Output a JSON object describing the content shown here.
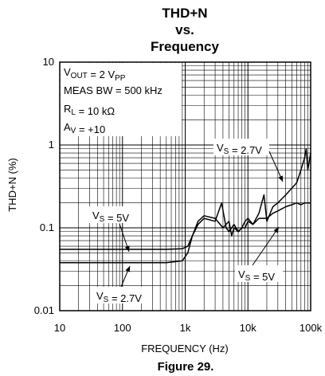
{
  "chart_data": {
    "type": "line",
    "title": [
      "THD+N",
      "vs.",
      "Frequency"
    ],
    "xlabel": "FREQUENCY (Hz)",
    "ylabel": "THD+N (%)",
    "x_scale": "log",
    "y_scale": "log",
    "xlim": [
      10,
      100000
    ],
    "ylim": [
      0.01,
      10
    ],
    "x_ticks": [
      {
        "value": 10,
        "label": "10"
      },
      {
        "value": 100,
        "label": "100"
      },
      {
        "value": 1000,
        "label": "1k"
      },
      {
        "value": 10000,
        "label": "10k"
      },
      {
        "value": 100000,
        "label": "100k"
      }
    ],
    "y_ticks": [
      {
        "value": 0.01,
        "label": "0.01"
      },
      {
        "value": 0.1,
        "label": "0.1"
      },
      {
        "value": 1,
        "label": "1"
      },
      {
        "value": 10,
        "label": "10"
      }
    ],
    "grid": true,
    "conditions": [
      {
        "main": "V",
        "sub": "OUT",
        "rest": " = 2 V",
        "sub2": "PP"
      },
      {
        "main": "MEAS BW = 500 kHz",
        "sub": "",
        "rest": "",
        "sub2": ""
      },
      {
        "main": "R",
        "sub": "L",
        "rest": " = 10 kΩ",
        "sub2": ""
      },
      {
        "main": "A",
        "sub": "V",
        "rest": " = +10",
        "sub2": ""
      }
    ],
    "series": [
      {
        "name_parts": {
          "main": "V",
          "sub": "S",
          "rest": " = 5V"
        },
        "x": [
          10,
          500,
          900,
          1100,
          1300,
          1600,
          2000,
          3000,
          4000,
          5000,
          5500,
          6000,
          7000,
          8000,
          9000,
          10000,
          12000,
          15000,
          20000,
          25000,
          30000,
          40000,
          50000,
          60000,
          70000,
          80000,
          90000,
          100000
        ],
        "y": [
          0.055,
          0.055,
          0.056,
          0.06,
          0.08,
          0.12,
          0.14,
          0.13,
          0.1,
          0.12,
          0.08,
          0.1,
          0.09,
          0.1,
          0.1,
          0.12,
          0.11,
          0.13,
          0.13,
          0.15,
          0.16,
          0.18,
          0.19,
          0.2,
          0.19,
          0.2,
          0.2,
          0.2
        ]
      },
      {
        "name_parts": {
          "main": "V",
          "sub": "S",
          "rest": " = 2.7V"
        },
        "x": [
          10,
          500,
          900,
          1100,
          1300,
          1600,
          2000,
          3000,
          3800,
          4500,
          5000,
          6000,
          7000,
          8000,
          9000,
          10000,
          12000,
          15000,
          18000,
          20000,
          25000,
          30000,
          40000,
          50000,
          60000,
          70000,
          80000,
          85000,
          90000,
          100000
        ],
        "y": [
          0.038,
          0.038,
          0.04,
          0.05,
          0.08,
          0.11,
          0.13,
          0.12,
          0.2,
          0.1,
          0.09,
          0.11,
          0.09,
          0.1,
          0.12,
          0.13,
          0.11,
          0.15,
          0.25,
          0.12,
          0.18,
          0.2,
          0.25,
          0.3,
          0.35,
          0.5,
          0.7,
          0.9,
          0.5,
          0.8
        ]
      }
    ],
    "annotations": [
      {
        "main": "V",
        "sub": "S",
        "rest": " = 2.7V"
      },
      {
        "main": "V",
        "sub": "S",
        "rest": " = 5V"
      },
      {
        "main": "V",
        "sub": "S",
        "rest": " = 5V"
      },
      {
        "main": "V",
        "sub": "S",
        "rest": " = 2.7V"
      }
    ]
  },
  "figure_caption": "Figure 29."
}
